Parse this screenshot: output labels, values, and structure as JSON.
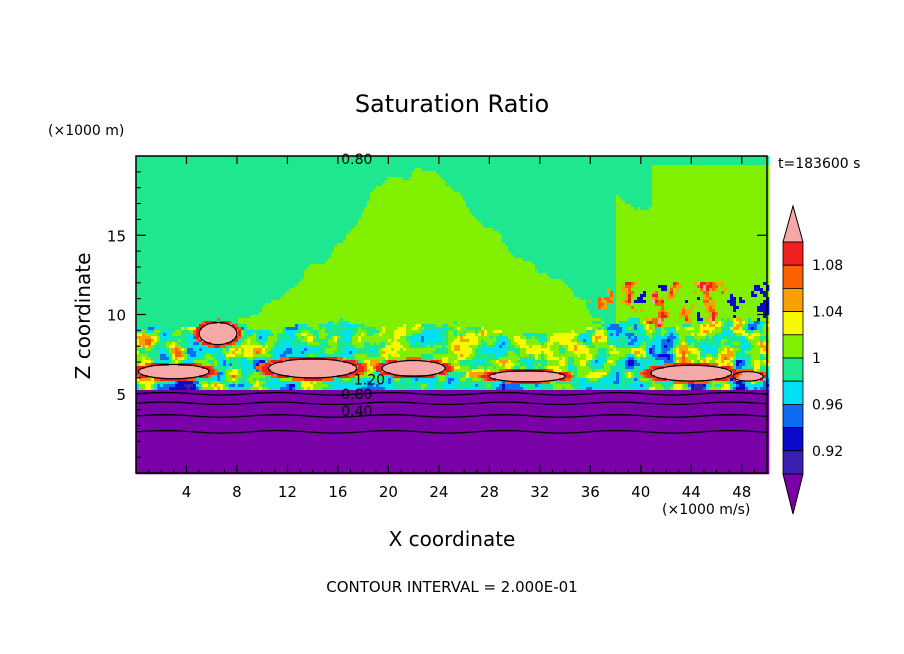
{
  "chart_data": {
    "type": "heatmap",
    "title": "Saturation Ratio",
    "xlabel": "X coordinate",
    "ylabel": "Z coordinate",
    "x_unit": "(×1000 m/s)",
    "y_unit": "(×1000 m)",
    "time_label": "t=183600 s",
    "footer": "CONTOUR INTERVAL = 2.000E-01",
    "xlim": [
      0,
      50
    ],
    "ylim": [
      0,
      20
    ],
    "x_ticks": [
      "4",
      "8",
      "12",
      "16",
      "20",
      "24",
      "28",
      "32",
      "36",
      "40",
      "44",
      "48"
    ],
    "y_ticks": [
      "5",
      "10",
      "15"
    ],
    "colorbar": {
      "labels": [
        "1.08",
        "1.04",
        "1",
        "0.96",
        "0.92"
      ],
      "levels": [
        {
          "max": 0.9,
          "color": "#7a00a8"
        },
        {
          "max": 0.92,
          "color": "#3b1fb0"
        },
        {
          "max": 0.94,
          "color": "#0a0ac8"
        },
        {
          "max": 0.96,
          "color": "#0e6cf0"
        },
        {
          "max": 0.98,
          "color": "#00e0f4"
        },
        {
          "max": 1.0,
          "color": "#1de890"
        },
        {
          "max": 1.02,
          "color": "#80f000"
        },
        {
          "max": 1.04,
          "color": "#f8f800"
        },
        {
          "max": 1.06,
          "color": "#f8a000"
        },
        {
          "max": 1.08,
          "color": "#f86000"
        },
        {
          "max": 1.1,
          "color": "#f02020"
        },
        {
          "max": 9.99,
          "color": "#f4a8a8"
        }
      ]
    },
    "contour_labels": [
      {
        "text": "0.80",
        "x": 17.5,
        "z": 19.8
      },
      {
        "text": "1.20",
        "x": 18.5,
        "z": 5.9
      },
      {
        "text": "0.80",
        "x": 17.5,
        "z": 5.0
      },
      {
        "text": "0.40",
        "x": 17.5,
        "z": 3.9
      }
    ],
    "field": {
      "lower_layer_top_z": 5.3,
      "cloud_band_bottom_z": 5.5,
      "cloud_band_top_z": 8.5,
      "upper_green_top_z": 20,
      "saturated_patches": [
        {
          "x": 3,
          "z": 6.4,
          "rx": 2.8,
          "rz": 0.45
        },
        {
          "x": 6.5,
          "z": 8.8,
          "rx": 1.5,
          "rz": 0.7
        },
        {
          "x": 14,
          "z": 6.6,
          "rx": 3.5,
          "rz": 0.6
        },
        {
          "x": 22,
          "z": 6.6,
          "rx": 2.5,
          "rz": 0.5
        },
        {
          "x": 31,
          "z": 6.1,
          "rx": 3.0,
          "rz": 0.35
        },
        {
          "x": 44,
          "z": 6.3,
          "rx": 3.2,
          "rz": 0.5
        },
        {
          "x": 48.5,
          "z": 6.1,
          "rx": 1.2,
          "rz": 0.3
        }
      ]
    }
  }
}
